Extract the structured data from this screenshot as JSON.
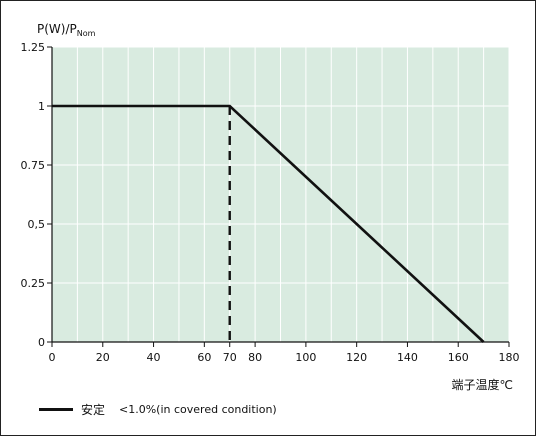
{
  "chart_data": {
    "type": "line",
    "ylabel_main": "P(W)/P",
    "ylabel_sub": "Nom",
    "xlabel": "端子温度℃",
    "xlim": [
      0,
      180
    ],
    "ylim": [
      0,
      1.25
    ],
    "xticks": [
      "0",
      "20",
      "40",
      "60",
      "70",
      "80",
      "100",
      "120",
      "140",
      "160",
      "180"
    ],
    "xtick_values": [
      0,
      20,
      40,
      60,
      70,
      80,
      100,
      120,
      140,
      160,
      180
    ],
    "yticks": [
      "0",
      "0.25",
      "0,5",
      "0.75",
      "1",
      "1.25"
    ],
    "ytick_values": [
      0,
      0.25,
      0.5,
      0.75,
      1,
      1.25
    ],
    "vgrid": [
      0,
      10,
      20,
      30,
      40,
      50,
      60,
      70,
      80,
      90,
      100,
      110,
      120,
      130,
      140,
      150,
      160,
      170,
      180
    ],
    "hgrid": [
      0,
      0.25,
      0.5,
      0.75,
      1,
      1.25
    ],
    "grid": true,
    "background": "#d9ebe0",
    "grid_color": "#ffffff",
    "series": [
      {
        "name": "安定",
        "x": [
          0,
          70,
          170
        ],
        "y": [
          1,
          1,
          0
        ],
        "color": "#111111"
      }
    ],
    "marker_line": {
      "x": 70,
      "y": [
        0,
        1
      ],
      "style": "dashed"
    },
    "legend": {
      "label": "安定",
      "note": "<1.0%(in covered condition)",
      "position": "bottom-left"
    }
  }
}
